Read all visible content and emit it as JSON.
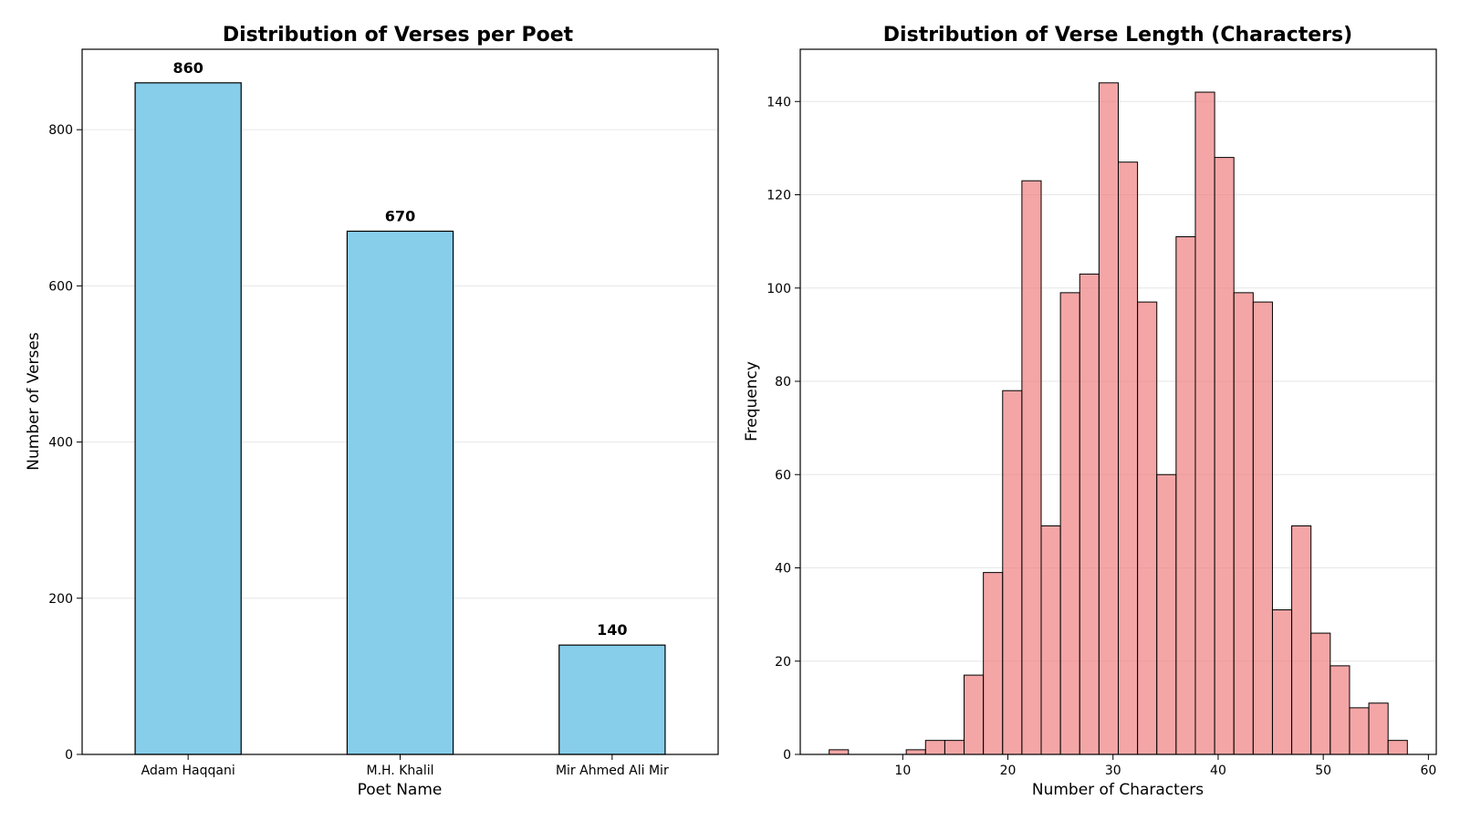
{
  "chart_data": [
    {
      "type": "bar",
      "title": "Distribution of Verses per Poet",
      "xlabel": "Poet Name",
      "ylabel": "Number of Verses",
      "categories": [
        "Adam Haqqani",
        "M.H. Khalil",
        "Mir Ahmed Ali Mir"
      ],
      "values": [
        860,
        670,
        140
      ],
      "value_labels": [
        "860",
        "670",
        "140"
      ],
      "ylim": [
        0,
        903
      ],
      "yticks": [
        0,
        200,
        400,
        600,
        800
      ],
      "grid": "y",
      "color": "#87ceeb",
      "edge_color": "#000000"
    },
    {
      "type": "bar",
      "subtype": "histogram",
      "title": "Distribution of Verse Length (Characters)",
      "xlabel": "Number of Characters",
      "ylabel": "Frequency",
      "bin_start": 3,
      "bin_width": 1.8333,
      "counts": [
        1,
        0,
        0,
        0,
        1,
        3,
        3,
        17,
        39,
        78,
        123,
        49,
        99,
        103,
        144,
        127,
        97,
        60,
        111,
        142,
        128,
        99,
        97,
        31,
        49,
        26,
        19,
        10,
        11,
        3
      ],
      "xlim": [
        0.25,
        60.75
      ],
      "ylim": [
        0,
        151.2
      ],
      "xticks": [
        10,
        20,
        30,
        40,
        50,
        60
      ],
      "yticks": [
        0,
        20,
        40,
        60,
        80,
        100,
        120,
        140
      ],
      "grid": "y",
      "color": "#f08080",
      "edge_color": "#000000"
    }
  ]
}
